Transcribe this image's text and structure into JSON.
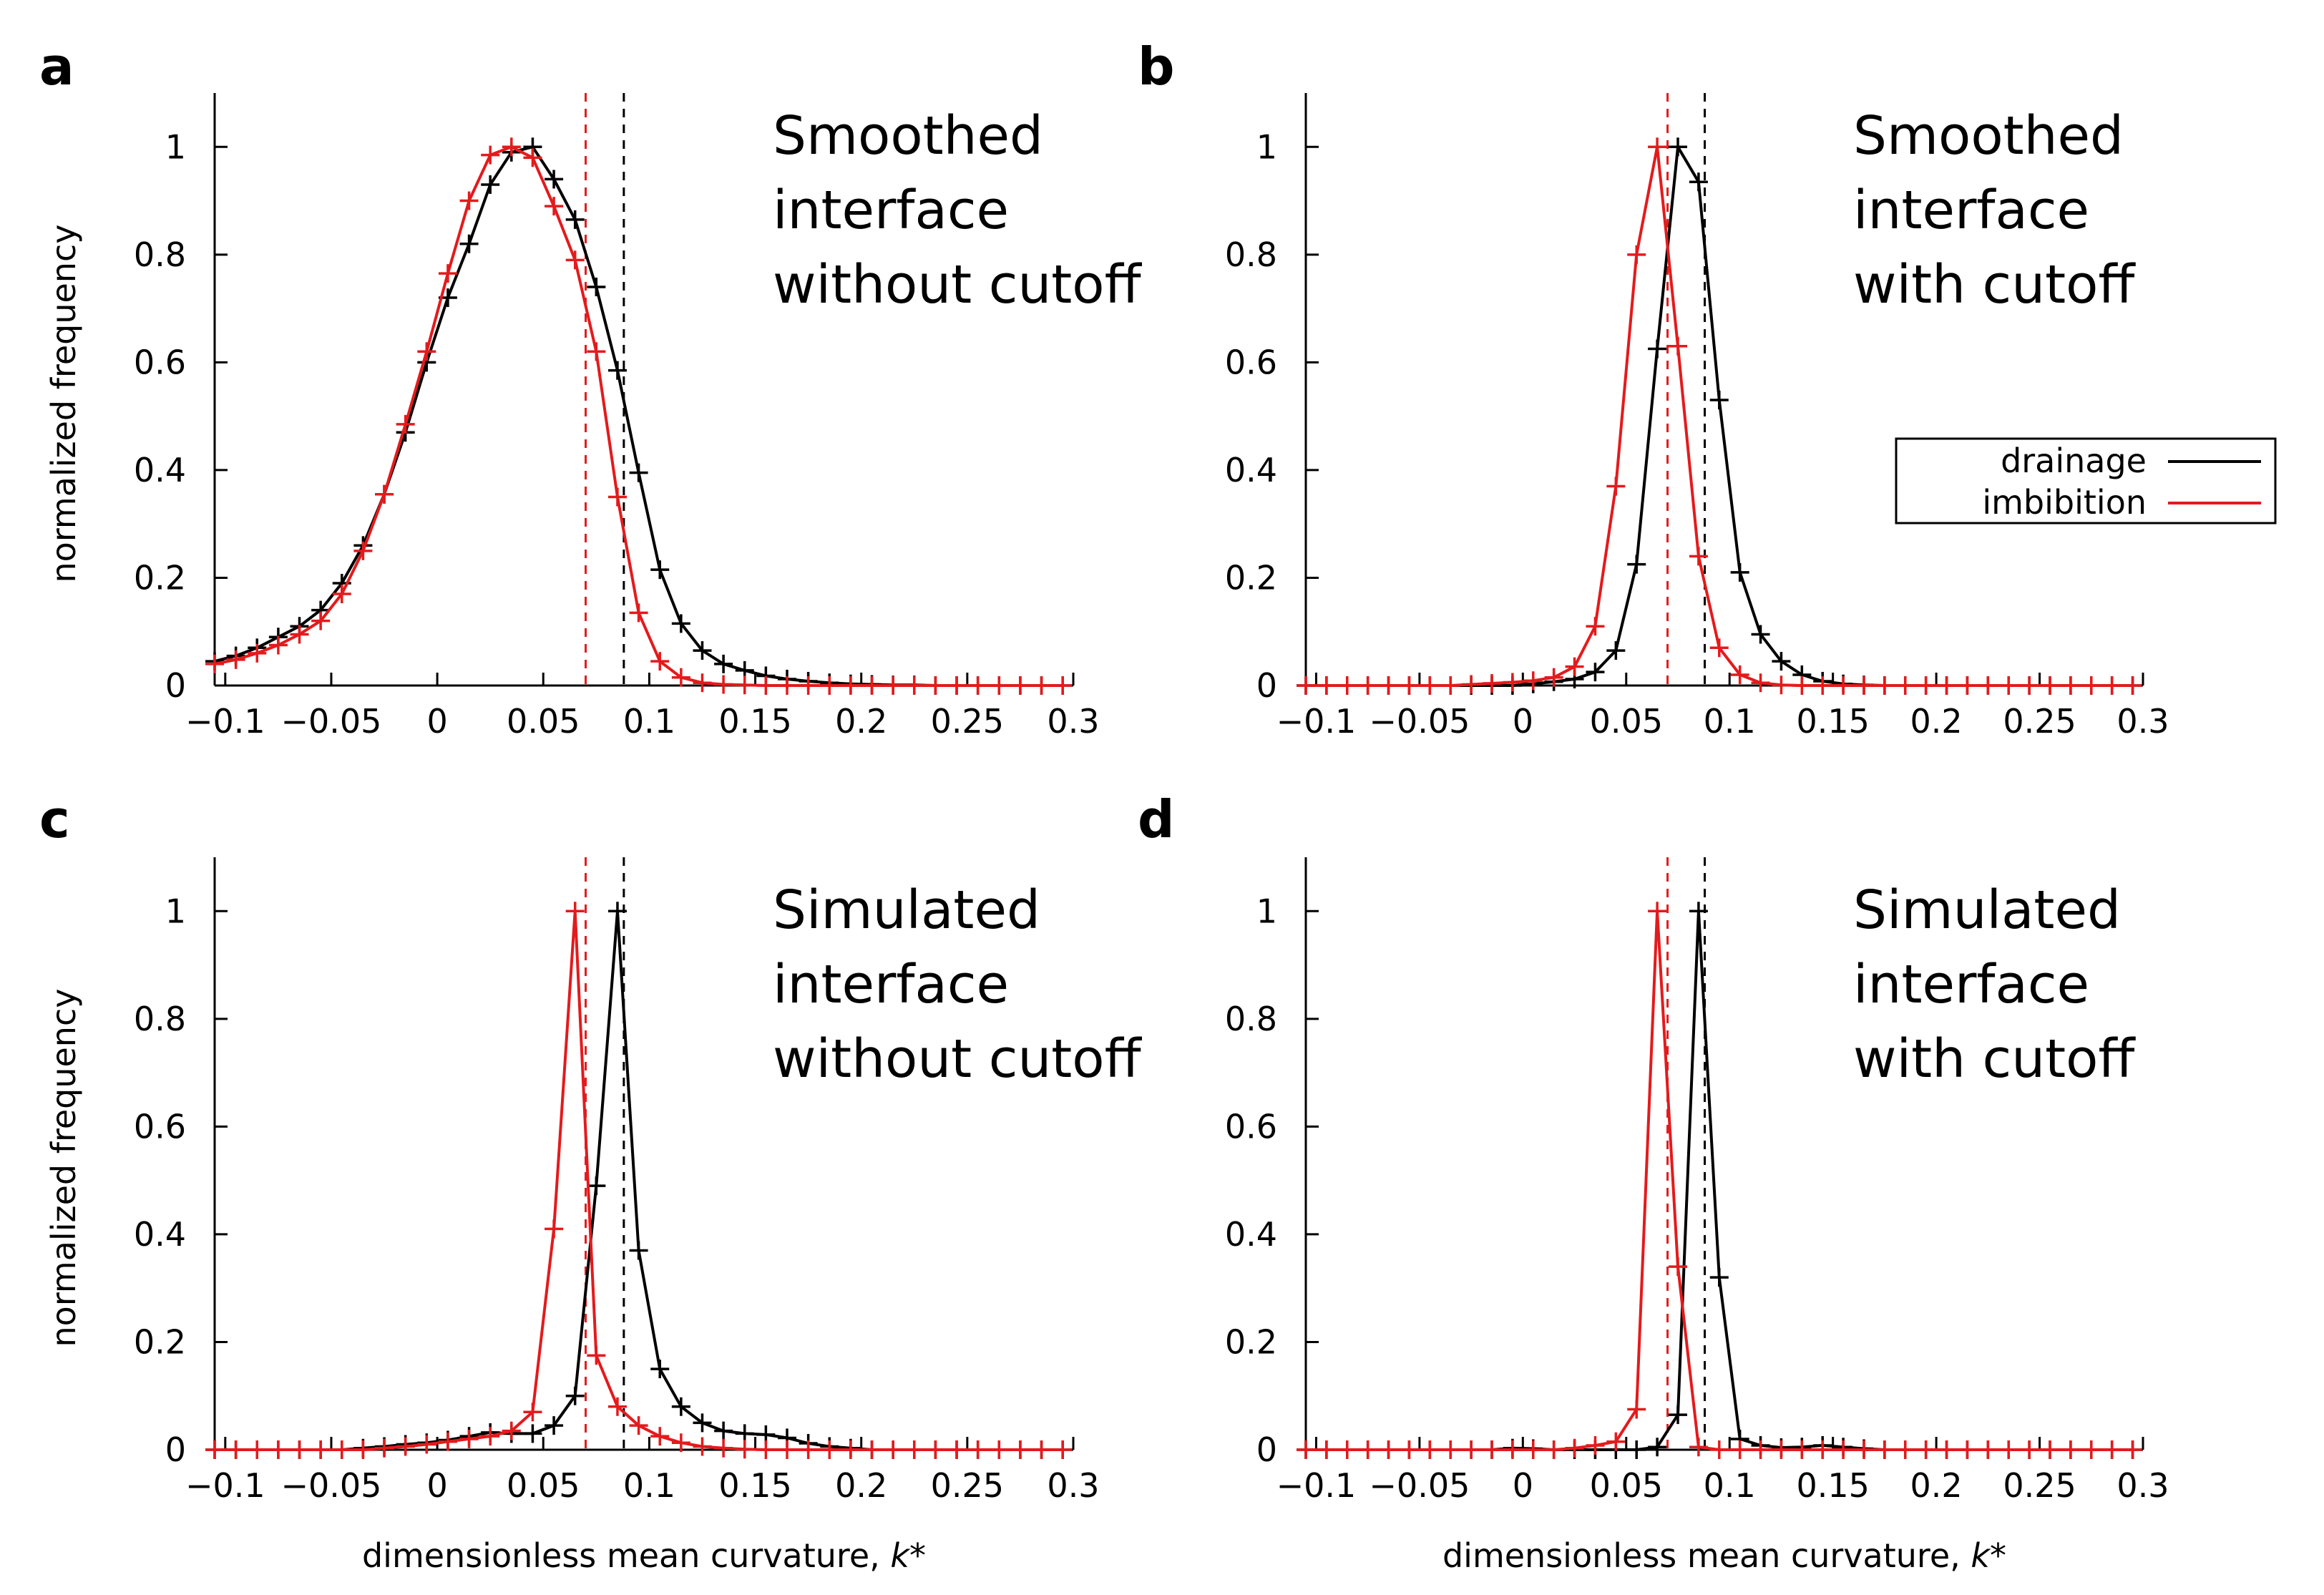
{
  "colors": {
    "drainage": "#000000",
    "imbibition": "#e41a1c"
  },
  "legend": {
    "drainage": "drainage",
    "imbibition": "imbibition"
  },
  "axis": {
    "xlabel": "dimensionless mean curvature, ",
    "xlabel_var": "k*",
    "ylabel": "normalized frequency",
    "x_ticks": [
      "-0.1",
      "-0.05",
      "0",
      "0.05",
      "0.1",
      "0.15",
      "0.2",
      "0.25",
      "0.3"
    ],
    "y_ticks": [
      "0",
      "0.2",
      "0.4",
      "0.6",
      "0.8",
      "1"
    ]
  },
  "chart_data": [
    {
      "type": "line",
      "panel": "a",
      "title_lines": [
        "Smoothed",
        "interface",
        "without cutoff"
      ],
      "xlabel": "",
      "ylabel": "normalized frequency",
      "xlim": [
        -0.105,
        0.3
      ],
      "ylim": [
        0,
        1.1
      ],
      "vlines": {
        "drainage": 0.088,
        "imbibition": 0.07
      },
      "series": [
        {
          "name": "drainage",
          "x": [
            -0.105,
            -0.095,
            -0.085,
            -0.075,
            -0.065,
            -0.055,
            -0.045,
            -0.035,
            -0.025,
            -0.015,
            -0.005,
            0.005,
            0.015,
            0.025,
            0.035,
            0.045,
            0.055,
            0.065,
            0.075,
            0.085,
            0.095,
            0.105,
            0.115,
            0.125,
            0.135,
            0.145,
            0.155,
            0.165,
            0.175,
            0.185,
            0.195,
            0.205,
            0.215,
            0.225,
            0.235,
            0.245,
            0.255,
            0.265,
            0.275,
            0.285,
            0.295
          ],
          "values": [
            0.045,
            0.055,
            0.07,
            0.09,
            0.11,
            0.14,
            0.19,
            0.26,
            0.355,
            0.47,
            0.6,
            0.72,
            0.82,
            0.93,
            0.99,
            1.0,
            0.94,
            0.865,
            0.74,
            0.585,
            0.395,
            0.215,
            0.115,
            0.065,
            0.04,
            0.028,
            0.018,
            0.012,
            0.008,
            0.005,
            0.003,
            0.002,
            0.001,
            0.001,
            0.0,
            0.0,
            0.0,
            0.0,
            0.0,
            0.0,
            0.0
          ]
        },
        {
          "name": "imbibition",
          "x": [
            -0.105,
            -0.095,
            -0.085,
            -0.075,
            -0.065,
            -0.055,
            -0.045,
            -0.035,
            -0.025,
            -0.015,
            -0.005,
            0.005,
            0.015,
            0.025,
            0.035,
            0.045,
            0.055,
            0.065,
            0.075,
            0.085,
            0.095,
            0.105,
            0.115,
            0.125,
            0.135,
            0.145,
            0.155,
            0.165,
            0.175,
            0.185,
            0.195,
            0.205,
            0.215,
            0.225,
            0.235,
            0.245,
            0.255,
            0.265,
            0.275,
            0.285,
            0.295
          ],
          "values": [
            0.04,
            0.048,
            0.06,
            0.075,
            0.095,
            0.12,
            0.17,
            0.25,
            0.355,
            0.485,
            0.62,
            0.765,
            0.9,
            0.985,
            1.0,
            0.98,
            0.89,
            0.79,
            0.62,
            0.35,
            0.135,
            0.045,
            0.015,
            0.005,
            0.002,
            0.001,
            0.0,
            0.0,
            0.0,
            0.0,
            0.0,
            0.0,
            0.0,
            0.0,
            0.0,
            0.0,
            0.0,
            0.0,
            0.0,
            0.0,
            0.0
          ]
        }
      ]
    },
    {
      "type": "line",
      "panel": "b",
      "title_lines": [
        "Smoothed",
        "interface",
        "with cutoff"
      ],
      "xlabel": "",
      "ylabel": "",
      "xlim": [
        -0.105,
        0.3
      ],
      "ylim": [
        0,
        1.1
      ],
      "vlines": {
        "drainage": 0.088,
        "imbibition": 0.07
      },
      "series": [
        {
          "name": "drainage",
          "x": [
            -0.105,
            -0.095,
            -0.085,
            -0.075,
            -0.065,
            -0.055,
            -0.045,
            -0.035,
            -0.025,
            -0.015,
            -0.005,
            0.005,
            0.015,
            0.025,
            0.035,
            0.045,
            0.055,
            0.065,
            0.075,
            0.085,
            0.095,
            0.105,
            0.115,
            0.125,
            0.135,
            0.145,
            0.155,
            0.165,
            0.175,
            0.185,
            0.195,
            0.205,
            0.215,
            0.225,
            0.235,
            0.245,
            0.255,
            0.265,
            0.275,
            0.285,
            0.295
          ],
          "values": [
            0.0,
            0.0,
            0.0,
            0.0,
            0.0,
            0.0,
            0.0,
            0.0,
            0.0,
            0.0,
            0.0,
            0.003,
            0.007,
            0.012,
            0.025,
            0.065,
            0.225,
            0.625,
            1.0,
            0.935,
            0.53,
            0.21,
            0.095,
            0.045,
            0.02,
            0.008,
            0.003,
            0.001,
            0.0,
            0.0,
            0.0,
            0.0,
            0.0,
            0.0,
            0.0,
            0.0,
            0.0,
            0.0,
            0.0,
            0.0,
            0.0
          ]
        },
        {
          "name": "imbibition",
          "x": [
            -0.105,
            -0.095,
            -0.085,
            -0.075,
            -0.065,
            -0.055,
            -0.045,
            -0.035,
            -0.025,
            -0.015,
            -0.005,
            0.005,
            0.015,
            0.025,
            0.035,
            0.045,
            0.055,
            0.065,
            0.075,
            0.085,
            0.095,
            0.105,
            0.115,
            0.125,
            0.135,
            0.145,
            0.155,
            0.165,
            0.175,
            0.185,
            0.195,
            0.205,
            0.215,
            0.225,
            0.235,
            0.245,
            0.255,
            0.265,
            0.275,
            0.285,
            0.295
          ],
          "values": [
            0.0,
            0.0,
            0.0,
            0.0,
            0.0,
            0.0,
            0.0,
            0.0,
            0.002,
            0.004,
            0.006,
            0.009,
            0.015,
            0.035,
            0.11,
            0.37,
            0.8,
            1.0,
            0.63,
            0.24,
            0.07,
            0.02,
            0.005,
            0.001,
            0.0,
            0.0,
            0.0,
            0.0,
            0.0,
            0.0,
            0.0,
            0.0,
            0.0,
            0.0,
            0.0,
            0.0,
            0.0,
            0.0,
            0.0,
            0.0,
            0.0
          ]
        }
      ]
    },
    {
      "type": "line",
      "panel": "c",
      "title_lines": [
        "Simulated",
        "interface",
        "without cutoff"
      ],
      "xlabel": "dimensionless mean curvature, k*",
      "ylabel": "normalized frequency",
      "xlim": [
        -0.105,
        0.3
      ],
      "ylim": [
        0,
        1.1
      ],
      "vlines": {
        "drainage": 0.088,
        "imbibition": 0.07
      },
      "series": [
        {
          "name": "drainage",
          "x": [
            -0.105,
            -0.095,
            -0.085,
            -0.075,
            -0.065,
            -0.055,
            -0.045,
            -0.035,
            -0.025,
            -0.015,
            -0.005,
            0.005,
            0.015,
            0.025,
            0.035,
            0.045,
            0.055,
            0.065,
            0.075,
            0.085,
            0.095,
            0.105,
            0.115,
            0.125,
            0.135,
            0.145,
            0.155,
            0.165,
            0.175,
            0.185,
            0.195,
            0.205,
            0.215,
            0.225,
            0.235,
            0.245,
            0.255,
            0.265,
            0.275,
            0.285,
            0.295
          ],
          "values": [
            0.0,
            0.0,
            0.0,
            0.0,
            0.0,
            0.0,
            0.0,
            0.003,
            0.006,
            0.01,
            0.013,
            0.018,
            0.025,
            0.032,
            0.03,
            0.03,
            0.045,
            0.1,
            0.49,
            1.0,
            0.37,
            0.15,
            0.08,
            0.05,
            0.035,
            0.03,
            0.028,
            0.022,
            0.012,
            0.006,
            0.003,
            0.0,
            0.0,
            0.0,
            0.0,
            0.0,
            0.0,
            0.0,
            0.0,
            0.0,
            0.0
          ]
        },
        {
          "name": "imbibition",
          "x": [
            -0.105,
            -0.095,
            -0.085,
            -0.075,
            -0.065,
            -0.055,
            -0.045,
            -0.035,
            -0.025,
            -0.015,
            -0.005,
            0.005,
            0.015,
            0.025,
            0.035,
            0.045,
            0.055,
            0.065,
            0.075,
            0.085,
            0.095,
            0.105,
            0.115,
            0.125,
            0.135,
            0.145,
            0.155,
            0.165,
            0.175,
            0.185,
            0.195,
            0.205,
            0.215,
            0.225,
            0.235,
            0.245,
            0.255,
            0.265,
            0.275,
            0.285,
            0.295
          ],
          "values": [
            0.0,
            0.0,
            0.0,
            0.0,
            0.0,
            0.0,
            0.0,
            0.0,
            0.003,
            0.006,
            0.01,
            0.015,
            0.02,
            0.025,
            0.035,
            0.07,
            0.41,
            1.0,
            0.175,
            0.08,
            0.045,
            0.025,
            0.013,
            0.006,
            0.003,
            0.001,
            0.0,
            0.0,
            0.0,
            0.0,
            0.0,
            0.0,
            0.0,
            0.0,
            0.0,
            0.0,
            0.0,
            0.0,
            0.0,
            0.0,
            0.0
          ]
        }
      ]
    },
    {
      "type": "line",
      "panel": "d",
      "title_lines": [
        "Simulated",
        "interface",
        "with cutoff"
      ],
      "xlabel": "dimensionless mean curvature, k*",
      "ylabel": "",
      "xlim": [
        -0.105,
        0.3
      ],
      "ylim": [
        0,
        1.1
      ],
      "vlines": {
        "drainage": 0.088,
        "imbibition": 0.07
      },
      "series": [
        {
          "name": "drainage",
          "x": [
            -0.105,
            -0.095,
            -0.085,
            -0.075,
            -0.065,
            -0.055,
            -0.045,
            -0.035,
            -0.025,
            -0.015,
            -0.005,
            0.005,
            0.015,
            0.025,
            0.035,
            0.045,
            0.055,
            0.065,
            0.075,
            0.085,
            0.095,
            0.105,
            0.115,
            0.125,
            0.135,
            0.145,
            0.155,
            0.165,
            0.175,
            0.185,
            0.195,
            0.205,
            0.215,
            0.225,
            0.235,
            0.245,
            0.255,
            0.265,
            0.275,
            0.285,
            0.295
          ],
          "values": [
            0.0,
            0.0,
            0.0,
            0.0,
            0.0,
            0.0,
            0.0,
            0.0,
            0.0,
            0.0,
            0.003,
            0.002,
            0.0,
            0.0,
            0.0,
            0.0,
            0.0,
            0.005,
            0.065,
            1.0,
            0.32,
            0.02,
            0.008,
            0.004,
            0.005,
            0.008,
            0.005,
            0.002,
            0.0,
            0.0,
            0.0,
            0.0,
            0.0,
            0.0,
            0.0,
            0.0,
            0.0,
            0.0,
            0.0,
            0.0,
            0.0
          ]
        },
        {
          "name": "imbibition",
          "x": [
            -0.105,
            -0.095,
            -0.085,
            -0.075,
            -0.065,
            -0.055,
            -0.045,
            -0.035,
            -0.025,
            -0.015,
            -0.005,
            0.005,
            0.015,
            0.025,
            0.035,
            0.045,
            0.055,
            0.065,
            0.075,
            0.085,
            0.095,
            0.105,
            0.115,
            0.125,
            0.135,
            0.145,
            0.155,
            0.165,
            0.175,
            0.185,
            0.195,
            0.205,
            0.215,
            0.225,
            0.235,
            0.245,
            0.255,
            0.265,
            0.275,
            0.285,
            0.295
          ],
          "values": [
            0.0,
            0.0,
            0.0,
            0.0,
            0.0,
            0.0,
            0.0,
            0.0,
            0.0,
            0.0,
            0.0,
            0.0,
            0.0,
            0.003,
            0.008,
            0.015,
            0.075,
            1.0,
            0.34,
            0.005,
            0.0,
            0.0,
            0.0,
            0.0,
            0.0,
            0.0,
            0.0,
            0.0,
            0.0,
            0.0,
            0.0,
            0.0,
            0.0,
            0.0,
            0.0,
            0.0,
            0.0,
            0.0,
            0.0,
            0.0,
            0.0
          ]
        }
      ]
    }
  ]
}
